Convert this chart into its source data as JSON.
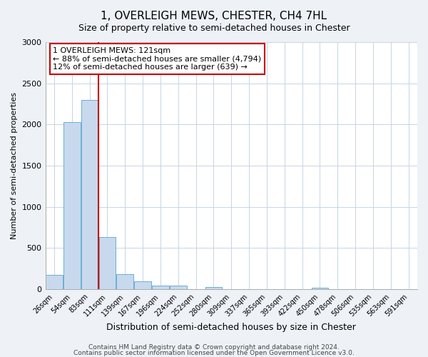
{
  "title": "1, OVERLEIGH MEWS, CHESTER, CH4 7HL",
  "subtitle": "Size of property relative to semi-detached houses in Chester",
  "xlabel": "Distribution of semi-detached houses by size in Chester",
  "ylabel": "Number of semi-detached properties",
  "categories": [
    "26sqm",
    "54sqm",
    "83sqm",
    "111sqm",
    "139sqm",
    "167sqm",
    "196sqm",
    "224sqm",
    "252sqm",
    "280sqm",
    "309sqm",
    "337sqm",
    "365sqm",
    "393sqm",
    "422sqm",
    "450sqm",
    "478sqm",
    "506sqm",
    "535sqm",
    "563sqm",
    "591sqm"
  ],
  "values": [
    175,
    2030,
    2300,
    630,
    185,
    95,
    45,
    45,
    0,
    30,
    0,
    0,
    0,
    0,
    0,
    20,
    0,
    0,
    0,
    0,
    0
  ],
  "bar_color": "#c8d9ed",
  "bar_edge_color": "#6aaed6",
  "annotation_title": "1 OVERLEIGH MEWS: 121sqm",
  "annotation_line1": "← 88% of semi-detached houses are smaller (4,794)",
  "annotation_line2": "12% of semi-detached houses are larger (639) →",
  "annotation_box_color": "#ffffff",
  "annotation_box_edge": "#cc0000",
  "vline_color": "#cc0000",
  "vline_bin_index": 3,
  "ylim": [
    0,
    3000
  ],
  "yticks": [
    0,
    500,
    1000,
    1500,
    2000,
    2500,
    3000
  ],
  "footer1": "Contains HM Land Registry data © Crown copyright and database right 2024.",
  "footer2": "Contains public sector information licensed under the Open Government Licence v3.0.",
  "background_color": "#eef2f7",
  "plot_background": "#ffffff",
  "grid_color": "#c8d4e3"
}
